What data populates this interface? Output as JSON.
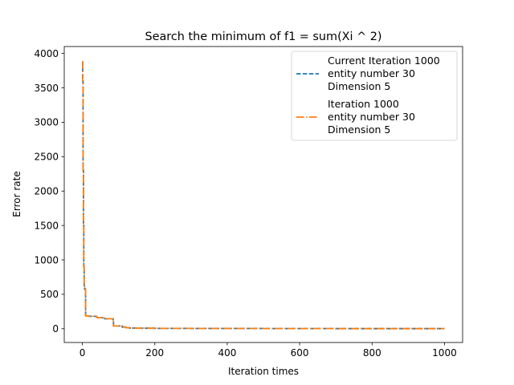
{
  "chart_data": {
    "type": "line",
    "title": "Search the minimum of f1 = sum(Xi ^ 2)",
    "xlabel": "Iteration times",
    "ylabel": "Error rate",
    "xlim": [
      -50,
      1050
    ],
    "ylim": [
      -200,
      4100
    ],
    "xticks": [
      "0",
      "200",
      "400",
      "600",
      "800",
      "1000"
    ],
    "yticks": [
      "0",
      "500",
      "1000",
      "1500",
      "2000",
      "2500",
      "3000",
      "3500",
      "4000"
    ],
    "legend_position": "top-right",
    "series": [
      {
        "legend": [
          "Current Iteration 1000",
          "entity number 30",
          "Dimension 5"
        ],
        "color": "#1f77b4",
        "style": "dashed",
        "x": [
          0,
          1,
          2,
          3,
          4,
          5,
          6,
          8,
          9,
          10,
          20,
          40,
          60,
          85,
          86,
          110,
          120,
          130,
          150,
          200,
          300,
          500,
          700,
          1000
        ],
        "y": [
          3880,
          3600,
          2300,
          1500,
          900,
          620,
          580,
          570,
          200,
          185,
          180,
          160,
          145,
          120,
          40,
          25,
          15,
          10,
          7,
          5,
          4,
          3,
          2,
          2
        ]
      },
      {
        "legend": [
          "Iteration 1000",
          "entity number 30",
          "Dimension 5"
        ],
        "color": "#ff7f0e",
        "style": "dashdot",
        "x": [
          0,
          1,
          2,
          3,
          4,
          5,
          6,
          8,
          9,
          10,
          20,
          40,
          60,
          85,
          86,
          110,
          120,
          130,
          150,
          200,
          300,
          500,
          700,
          1000
        ],
        "y": [
          3880,
          3600,
          2300,
          1500,
          900,
          620,
          580,
          570,
          200,
          185,
          180,
          160,
          145,
          120,
          40,
          25,
          15,
          10,
          7,
          5,
          4,
          3,
          2,
          2
        ]
      }
    ]
  }
}
